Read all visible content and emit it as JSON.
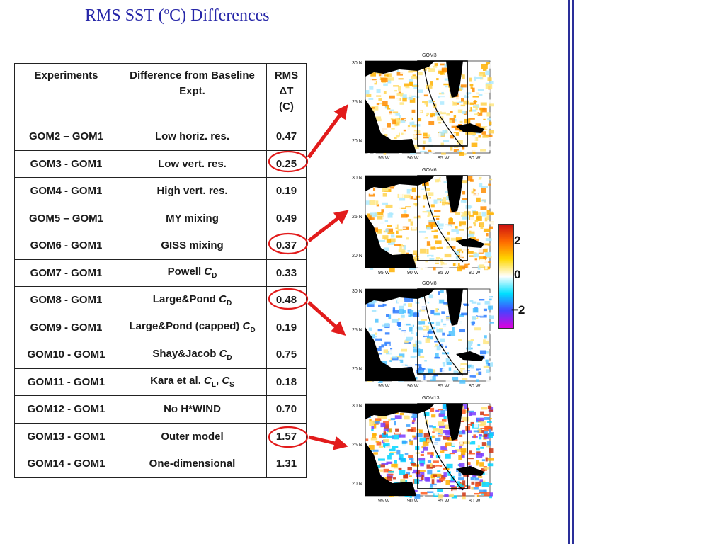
{
  "title": {
    "prefix": "RMS SST (",
    "sup": "o",
    "suffix": "C) Differences"
  },
  "table": {
    "headers": [
      "Experiments",
      "Difference from Baseline Expt.",
      [
        "RMS",
        "ΔT",
        "(C)"
      ]
    ],
    "rows": [
      {
        "exp": "GOM2 – GOM1",
        "diff": "Low horiz. res.",
        "rms": "0.47"
      },
      {
        "exp": "GOM3 - GOM1",
        "diff": "Low vert. res.",
        "rms": "0.25"
      },
      {
        "exp": "GOM4 - GOM1",
        "diff": "High vert. res.",
        "rms": "0.19"
      },
      {
        "exp": "GOM5 – GOM1",
        "diff": "MY mixing",
        "rms": "0.49"
      },
      {
        "exp": "GOM6 - GOM1",
        "diff": "GISS mixing",
        "rms": "0.37"
      },
      {
        "exp": "GOM7 - GOM1",
        "diff": "Powell C_D",
        "rms": "0.33"
      },
      {
        "exp": "GOM8 - GOM1",
        "diff": "Large&Pond C_D",
        "rms": "0.48"
      },
      {
        "exp": "GOM9 - GOM1",
        "diff": "Large&Pond (capped) C_D",
        "rms": "0.19"
      },
      {
        "exp": "GOM10 - GOM1",
        "diff": "Shay&Jacob C_D",
        "rms": "0.75"
      },
      {
        "exp": "GOM11 - GOM1",
        "diff": "Kara et al. C_L, C_S",
        "rms": "0.18"
      },
      {
        "exp": "GOM12 - GOM1",
        "diff": "No H*WIND",
        "rms": "0.70"
      },
      {
        "exp": "GOM13 - GOM1",
        "diff": "Outer model",
        "rms": "1.57"
      },
      {
        "exp": "GOM14 - GOM1",
        "diff": "One-dimensional",
        "rms": "1.31"
      }
    ]
  },
  "maps": [
    {
      "name": "GOM3",
      "style": "warm"
    },
    {
      "name": "GOM6",
      "style": "warm"
    },
    {
      "name": "GOM8",
      "style": "cool"
    },
    {
      "name": "GOM13",
      "style": "mixed"
    }
  ],
  "map_axes": {
    "lat_labels": [
      "30 N",
      "25 N",
      "20 N"
    ],
    "lon_labels": [
      "95 W",
      "90 W",
      "85 W",
      "80 W"
    ]
  },
  "colorbar": {
    "labels": [
      "2",
      "0",
      "−2"
    ],
    "colors": [
      "#cc1111",
      "#ff6a00",
      "#ffd700",
      "#ffffff",
      "#00e0ff",
      "#4444ff",
      "#dd00dd"
    ]
  },
  "accent_colors": {
    "title": "#2626a8",
    "arrow": "#e21b1b",
    "rules": "#2a2f9a"
  }
}
